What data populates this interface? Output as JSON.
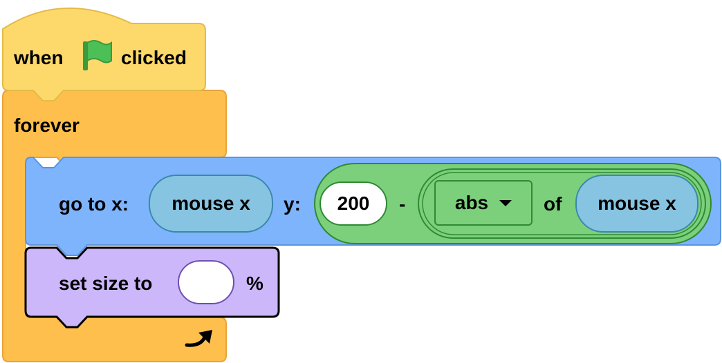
{
  "hat_block": {
    "label_when": "when",
    "icon": "green-flag-icon",
    "label_clicked": "clicked",
    "color": "#fdd96b"
  },
  "forever_block": {
    "label": "forever",
    "loop_icon": "loop-arrow-icon",
    "color": "#ffbf4d"
  },
  "goto_block": {
    "label_goto": "go to x:",
    "x_reporter": "mouse x",
    "label_y": "y:",
    "operator_minus": {
      "left_value": "200",
      "symbol": "-",
      "math_op": {
        "dropdown_value": "abs",
        "label_of": "of",
        "argument": "mouse x"
      }
    },
    "color": "#7eb4fb"
  },
  "set_size_block": {
    "label_set": "set size to",
    "value": "",
    "unit": "%",
    "color": "#cbb7fa"
  }
}
